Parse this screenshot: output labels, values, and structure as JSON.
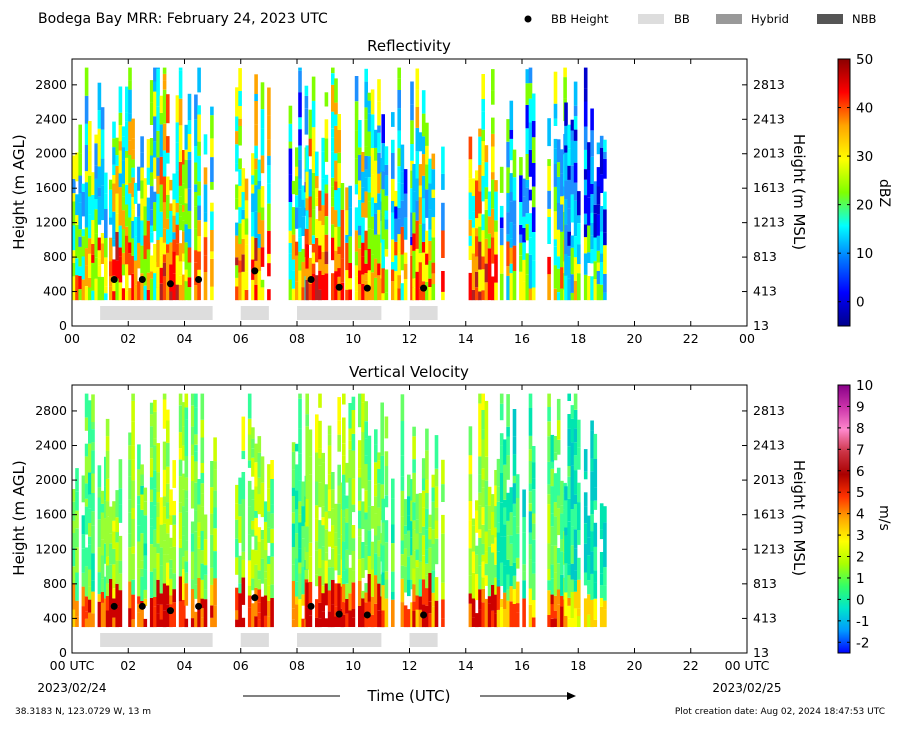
{
  "page_title": "Bodega Bay MRR:  February 24, 2023 UTC",
  "legend": [
    {
      "label": "BB Height",
      "marker": "dot",
      "color": "#000000"
    },
    {
      "label": "BB",
      "marker": "box",
      "color": "#dddddd"
    },
    {
      "label": "Hybrid",
      "marker": "box",
      "color": "#999999"
    },
    {
      "label": "NBB",
      "marker": "box",
      "color": "#555555"
    }
  ],
  "footer": {
    "xlabel": "Time (UTC)",
    "start_date": "2023/02/24",
    "end_date": "2023/02/25",
    "location": "38.3183 N, 123.0729 W, 13 m",
    "creation": "Plot creation date: Aug 02, 2024 18:47:53 UTC"
  },
  "chart_data": [
    {
      "type": "heatmap",
      "title": "Reflectivity",
      "ylabel": "Height (m AGL)",
      "ylabel_right": "Height (m MSL)",
      "ylim": [
        0,
        3100
      ],
      "xlim": [
        0,
        24
      ],
      "x_ticks": [
        "00",
        "02",
        "04",
        "06",
        "08",
        "10",
        "12",
        "14",
        "16",
        "18",
        "20",
        "22",
        "00"
      ],
      "y_ticks": [
        0,
        400,
        800,
        1200,
        1600,
        2000,
        2400,
        2800
      ],
      "y_ticks_right": [
        "13",
        "413",
        "813",
        "1213",
        "1613",
        "2013",
        "2413",
        "2813"
      ],
      "colorbar": {
        "label": "dBZ",
        "min": -5,
        "max": 50,
        "ticks": [
          "0",
          "10",
          "20",
          "30",
          "40",
          "50"
        ],
        "tick_values": [
          0,
          10,
          20,
          30,
          40,
          50
        ],
        "stops": [
          "#00008b",
          "#0000ff",
          "#0077ff",
          "#00ffff",
          "#7fff00",
          "#ffff00",
          "#ffa500",
          "#ff0000",
          "#8b0000"
        ]
      },
      "bb_heights": [
        {
          "t": 1.5,
          "h": 540
        },
        {
          "t": 2.5,
          "h": 540
        },
        {
          "t": 3.5,
          "h": 490
        },
        {
          "t": 4.5,
          "h": 540
        },
        {
          "t": 6.5,
          "h": 640
        },
        {
          "t": 8.5,
          "h": 540
        },
        {
          "t": 9.5,
          "h": 450
        },
        {
          "t": 10.5,
          "h": 440
        },
        {
          "t": 12.5,
          "h": 440
        }
      ],
      "bb_periods": [
        [
          1,
          5
        ],
        [
          6,
          7
        ],
        [
          8,
          11
        ],
        [
          12,
          13
        ]
      ]
    },
    {
      "type": "heatmap",
      "title": "Vertical Velocity",
      "ylabel": "Height (m AGL)",
      "ylabel_right": "Height (m MSL)",
      "ylim": [
        0,
        3100
      ],
      "xlim": [
        0,
        24
      ],
      "x_ticks": [
        "00 UTC",
        "02",
        "04",
        "06",
        "08",
        "10",
        "12",
        "14",
        "16",
        "18",
        "20",
        "22",
        "00 UTC"
      ],
      "y_ticks": [
        0,
        400,
        800,
        1200,
        1600,
        2000,
        2400,
        2800
      ],
      "y_ticks_right": [
        "13",
        "413",
        "813",
        "1213",
        "1613",
        "2013",
        "2413",
        "2813"
      ],
      "colorbar": {
        "label": "m/s",
        "min": -2.5,
        "max": 10,
        "ticks": [
          "-2",
          "-1",
          "0",
          "1",
          "2",
          "3",
          "4",
          "5",
          "6",
          "7",
          "8",
          "9",
          "10"
        ],
        "tick_values": [
          -2,
          -1,
          0,
          1,
          2,
          3,
          4,
          5,
          6,
          7,
          8,
          9,
          10
        ],
        "stops": [
          "#0000ff",
          "#0099ff",
          "#00e5cc",
          "#33ff66",
          "#aaff00",
          "#ffff00",
          "#ffaa00",
          "#ff3300",
          "#aa0000",
          "#cc3344",
          "#ff88cc",
          "#cc33aa",
          "#880088"
        ]
      },
      "bb_heights": [
        {
          "t": 1.5,
          "h": 540
        },
        {
          "t": 2.5,
          "h": 540
        },
        {
          "t": 3.5,
          "h": 490
        },
        {
          "t": 4.5,
          "h": 540
        },
        {
          "t": 6.5,
          "h": 640
        },
        {
          "t": 8.5,
          "h": 540
        },
        {
          "t": 9.5,
          "h": 450
        },
        {
          "t": 10.5,
          "h": 440
        },
        {
          "t": 12.5,
          "h": 440
        }
      ],
      "bb_periods": [
        [
          1,
          5
        ],
        [
          6,
          7
        ],
        [
          8,
          11
        ],
        [
          12,
          13
        ]
      ]
    }
  ]
}
